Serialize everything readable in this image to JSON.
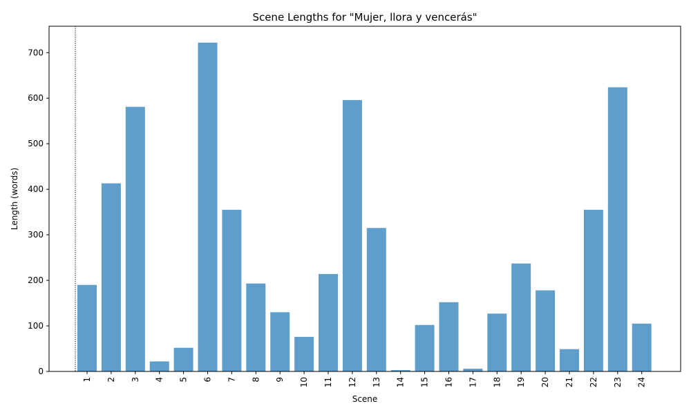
{
  "chart_data": {
    "type": "bar",
    "title": "Scene Lengths for \"Mujer, llora y vencerás\"",
    "xlabel": "Scene",
    "ylabel": "Length (words)",
    "categories": [
      "1",
      "2",
      "3",
      "4",
      "5",
      "6",
      "7",
      "8",
      "9",
      "10",
      "11",
      "12",
      "13",
      "14",
      "15",
      "16",
      "17",
      "18",
      "19",
      "20",
      "21",
      "22",
      "23",
      "24"
    ],
    "values": [
      190,
      413,
      581,
      22,
      52,
      722,
      355,
      193,
      130,
      76,
      214,
      596,
      315,
      3,
      102,
      152,
      6,
      127,
      237,
      178,
      49,
      355,
      624,
      105
    ],
    "ylim": [
      0,
      758
    ],
    "yticks": [
      0,
      100,
      200,
      300,
      400,
      500,
      600,
      700
    ],
    "bar_color": "#5f9ecb",
    "vline_color": "#000000",
    "grid": false,
    "legend": "none"
  }
}
